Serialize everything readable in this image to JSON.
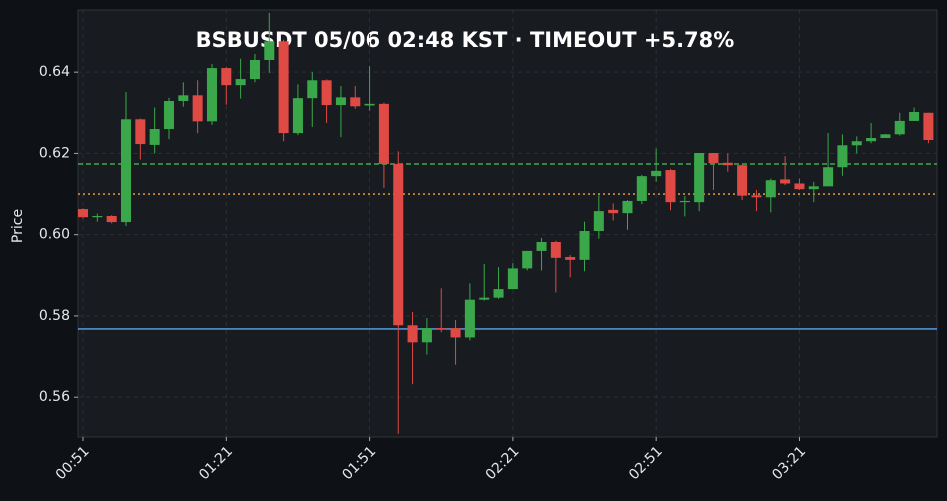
{
  "chart_data": {
    "type": "candlestick",
    "title": "BSBUSDT  05/06 02:48 KST  ·  TIMEOUT +5.78%",
    "y_label": "Price",
    "categories": [
      "00:51",
      null,
      null,
      null,
      null,
      null,
      null,
      null,
      null,
      null,
      "01:21",
      null,
      null,
      null,
      null,
      null,
      null,
      null,
      null,
      null,
      "01:51",
      null,
      null,
      null,
      null,
      null,
      null,
      null,
      null,
      null,
      "02:21",
      null,
      null,
      null,
      null,
      null,
      null,
      null,
      null,
      null,
      "02:51",
      null,
      null,
      null,
      null,
      null,
      null,
      null,
      null,
      null,
      "03:21",
      null,
      null,
      null,
      null,
      null,
      null,
      null,
      null,
      null
    ],
    "open": [
      0.6063,
      0.6043,
      0.6046,
      0.6031,
      0.6284,
      0.6221,
      0.626,
      0.6329,
      0.6343,
      0.6279,
      0.641,
      0.6368,
      0.6383,
      0.643,
      0.6476,
      0.625,
      0.6336,
      0.638,
      0.6319,
      0.6338,
      0.6318,
      0.6322,
      0.6174,
      0.5777,
      0.5735,
      0.577,
      0.577,
      0.5747,
      0.584,
      0.5845,
      0.5866,
      0.5917,
      0.596,
      0.5982,
      0.5945,
      0.5938,
      0.6009,
      0.6061,
      0.6053,
      0.6083,
      0.6144,
      0.6159,
      0.608,
      0.608,
      0.6201,
      0.6177,
      0.6171,
      0.6097,
      0.6092,
      0.6136,
      0.6126,
      0.6112,
      0.6119,
      0.6166,
      0.622,
      0.623,
      0.6238,
      0.6247,
      0.628,
      0.63
    ],
    "high": [
      0.6065,
      0.6052,
      0.6048,
      0.6351,
      0.6286,
      0.6313,
      0.6337,
      0.6375,
      0.638,
      0.642,
      0.6412,
      0.6433,
      0.6445,
      0.6546,
      0.648,
      0.637,
      0.64,
      0.6382,
      0.6366,
      0.6366,
      0.6415,
      0.6325,
      0.6205,
      0.581,
      0.5795,
      0.5868,
      0.579,
      0.588,
      0.5928,
      0.592,
      0.593,
      0.596,
      0.5992,
      0.5985,
      0.595,
      0.6032,
      0.6097,
      0.6077,
      0.6085,
      0.6147,
      0.6212,
      0.6162,
      0.6095,
      0.6201,
      0.6201,
      0.62,
      0.6173,
      0.611,
      0.6138,
      0.6193,
      0.6138,
      0.613,
      0.625,
      0.6247,
      0.6242,
      0.6275,
      0.6248,
      0.63,
      0.6313,
      0.63
    ],
    "low": [
      0.604,
      0.6032,
      0.6028,
      0.6021,
      0.6185,
      0.62,
      0.6235,
      0.6315,
      0.625,
      0.627,
      0.632,
      0.6335,
      0.6375,
      0.6398,
      0.623,
      0.6245,
      0.6265,
      0.6275,
      0.624,
      0.631,
      0.6305,
      0.6115,
      0.551,
      0.5632,
      0.5705,
      0.576,
      0.568,
      0.574,
      0.5838,
      0.5842,
      0.5866,
      0.5912,
      0.5912,
      0.5858,
      0.5895,
      0.591,
      0.599,
      0.6035,
      0.6012,
      0.6075,
      0.613,
      0.606,
      0.6045,
      0.6058,
      0.611,
      0.6155,
      0.6085,
      0.6058,
      0.6055,
      0.6122,
      0.611,
      0.608,
      0.6119,
      0.6145,
      0.62,
      0.6225,
      0.6238,
      0.6244,
      0.628,
      0.6225
    ],
    "close": [
      0.6043,
      0.6046,
      0.6031,
      0.6284,
      0.6223,
      0.626,
      0.6329,
      0.6343,
      0.6279,
      0.641,
      0.6368,
      0.6383,
      0.643,
      0.6476,
      0.625,
      0.6336,
      0.638,
      0.6319,
      0.6338,
      0.6316,
      0.6322,
      0.6174,
      0.5777,
      0.5735,
      0.577,
      0.5768,
      0.5747,
      0.584,
      0.5845,
      0.5866,
      0.5917,
      0.596,
      0.5982,
      0.5943,
      0.5938,
      0.6009,
      0.6058,
      0.6053,
      0.6083,
      0.6144,
      0.6157,
      0.608,
      0.6083,
      0.6201,
      0.6176,
      0.6171,
      0.6096,
      0.6092,
      0.6134,
      0.6126,
      0.6112,
      0.6119,
      0.6166,
      0.622,
      0.623,
      0.6238,
      0.6247,
      0.628,
      0.6302,
      0.6233
    ],
    "up_color": "#3aa84a",
    "down_color": "#e04a45",
    "ylim": [
      0.5502,
      0.6553
    ],
    "yticks": [
      0.56,
      0.58,
      {
        "value": 0.6,
        "label": "0.60"
      },
      0.62,
      0.64
    ],
    "grid": true,
    "hlines": [
      {
        "value": 0.6174,
        "color": "#4cc25a",
        "style": "dashed"
      },
      {
        "value": 0.61,
        "color": "#f0a848",
        "style": "dotted"
      },
      {
        "value": 0.5768,
        "color": "#5aa8f0",
        "style": "solid"
      }
    ]
  }
}
